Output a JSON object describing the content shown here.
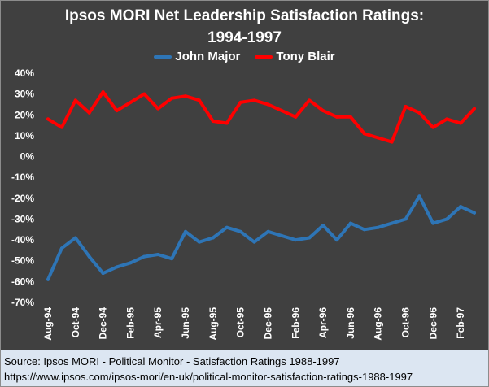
{
  "chart_data": {
    "type": "line",
    "title": "Ipsos MORI Net Leadership Satisfaction Ratings:",
    "subtitle": "1994-1997",
    "ylim": [
      -70,
      40
    ],
    "y_ticks": [
      "40%",
      "30%",
      "20%",
      "10%",
      "0%",
      "-10%",
      "-20%",
      "-30%",
      "-40%",
      "-50%",
      "-60%",
      "-70%"
    ],
    "x": [
      "Aug-94",
      "Sep-94",
      "Oct-94",
      "Nov-94",
      "Dec-94",
      "Jan-95",
      "Feb-95",
      "Mar-95",
      "Apr-95",
      "May-95",
      "Jun-95",
      "Jul-95",
      "Aug-95",
      "Sep-95",
      "Oct-95",
      "Nov-95",
      "Dec-95",
      "Jan-96",
      "Feb-96",
      "Mar-96",
      "Apr-96",
      "May-96",
      "Jun-96",
      "Jul-96",
      "Aug-96",
      "Sep-96",
      "Oct-96",
      "Nov-96",
      "Dec-96",
      "Jan-97",
      "Feb-97",
      "Mar-97"
    ],
    "x_tick_labels": [
      "Aug-94",
      "Oct-94",
      "Dec-94",
      "Feb-95",
      "Apr-95",
      "Jun-95",
      "Aug-95",
      "Oct-95",
      "Dec-95",
      "Feb-96",
      "Apr-96",
      "Jun-96",
      "Aug-96",
      "Oct-96",
      "Dec-96",
      "Feb-97"
    ],
    "series": [
      {
        "name": "John Major",
        "color": "#2e75b6",
        "values": [
          -59,
          -44,
          -39,
          -48,
          -56,
          -53,
          -51,
          -48,
          -47,
          -49,
          -36,
          -41,
          -39,
          -34,
          -36,
          -41,
          -36,
          -38,
          -40,
          -39,
          -33,
          -40,
          -32,
          -35,
          -34,
          -32,
          -30,
          -19,
          -32,
          -30,
          -24,
          -27
        ]
      },
      {
        "name": "Tony Blair",
        "color": "#ff0000",
        "values": [
          18,
          14,
          27,
          21,
          31,
          22,
          26,
          30,
          23,
          28,
          29,
          27,
          17,
          16,
          26,
          27,
          25,
          22,
          19,
          27,
          22,
          19,
          19,
          11,
          9,
          7,
          24,
          21,
          14,
          18,
          16,
          23
        ]
      }
    ],
    "grid": false,
    "legend_position": "top"
  },
  "source": {
    "line1": "Source: Ipsos MORI - Political Monitor - Satisfaction Ratings 1988-1997",
    "line2": "https://www.ipsos.com/ipsos-mori/en-uk/political-monitor-satisfaction-ratings-1988-1997"
  }
}
